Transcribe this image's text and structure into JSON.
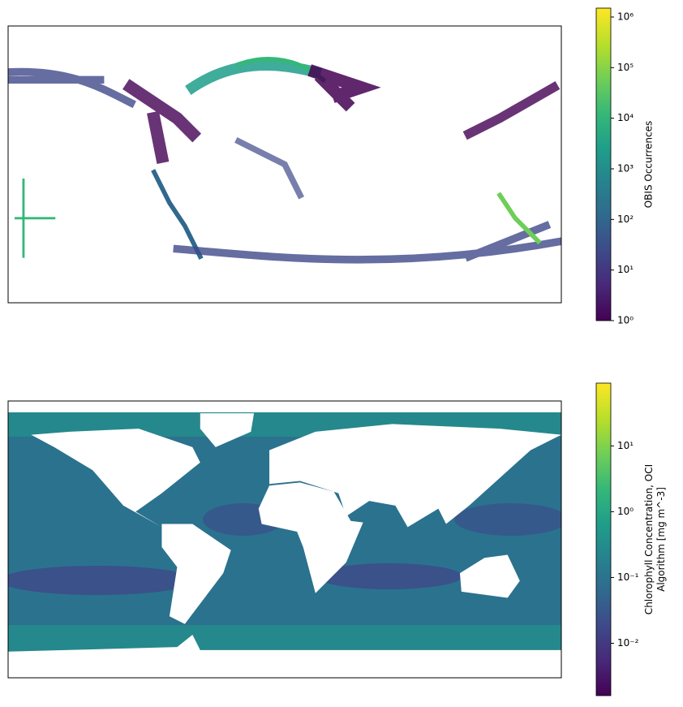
{
  "chart_data": [
    {
      "type": "map",
      "colorbar": {
        "label": [
          "OBIS Occurrences"
        ],
        "scale": "log",
        "colormap": "viridis",
        "lim": [
          1,
          1500000
        ],
        "ticks": [
          {
            "value": 1,
            "label": "10⁰"
          },
          {
            "value": 10,
            "label": "10¹"
          },
          {
            "value": 100,
            "label": "10²"
          },
          {
            "value": 1000,
            "label": "10³"
          },
          {
            "value": 10000,
            "label": "10⁴"
          },
          {
            "value": 100000,
            "label": "10⁵"
          },
          {
            "value": 1000000,
            "label": "10⁶"
          }
        ]
      }
    },
    {
      "type": "map",
      "colorbar": {
        "label": [
          "Chlorophyll Concentration, OCI",
          "Algorithm [mg m^-3]"
        ],
        "scale": "log",
        "colormap": "viridis",
        "lim": [
          0.0016,
          90
        ],
        "ticks": [
          {
            "value": 0.01,
            "label": "10⁻²"
          },
          {
            "value": 0.1,
            "label": "10⁻¹"
          },
          {
            "value": 1,
            "label": "10⁰"
          },
          {
            "value": 10,
            "label": "10¹"
          }
        ]
      }
    }
  ]
}
